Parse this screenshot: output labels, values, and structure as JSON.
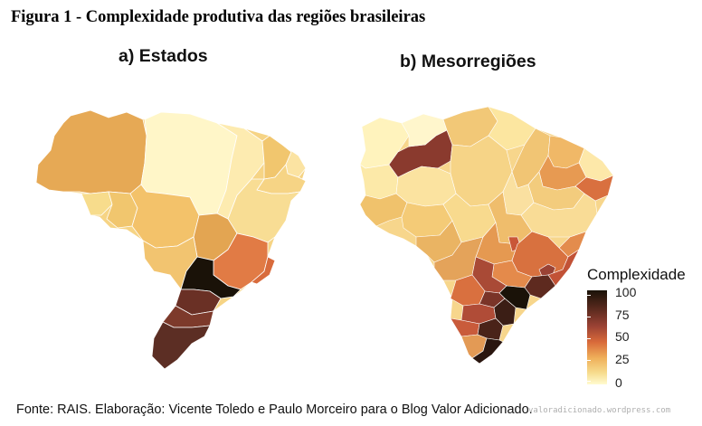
{
  "figure_title": "Figura 1 - Complexidade produtiva das regiões brasileiras",
  "panels": [
    {
      "title": "a) Estados"
    },
    {
      "title": "b) Mesorregiões"
    }
  ],
  "legend": {
    "title": "Complexidade",
    "labels": [
      "100",
      "75",
      "50",
      "25",
      "0"
    ],
    "scale_colors": [
      "#1a1208",
      "#5b2a1e",
      "#9a4234",
      "#d96a3a",
      "#efb05a",
      "#f7dd8f",
      "#fffbd0"
    ]
  },
  "source": "Fonte: RAIS. Elaboração: Vicente Toledo e Paulo Morceiro para o Blog Valor Adicionado.",
  "watermark": "valoradicionado.wordpress.com"
}
